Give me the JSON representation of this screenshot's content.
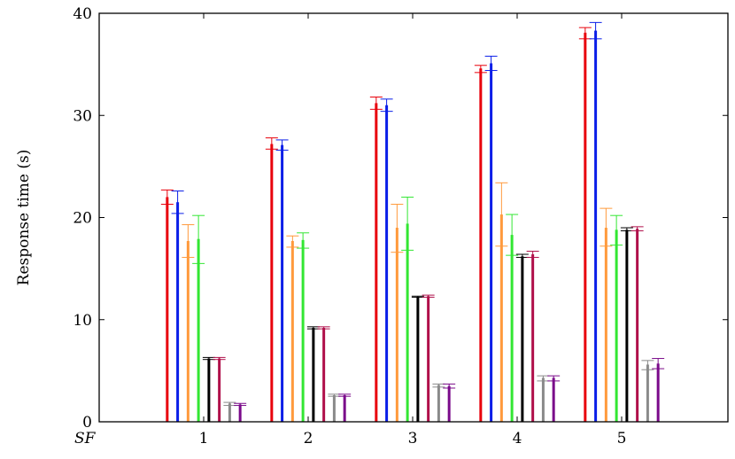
{
  "chart_data": {
    "type": "bar",
    "title": "",
    "xlabel": "SF",
    "ylabel": "Response time (s)",
    "ylim": [
      0,
      40
    ],
    "yticks": [
      0,
      10,
      20,
      30,
      40
    ],
    "categories": [
      "1",
      "2",
      "3",
      "4",
      "5"
    ],
    "grid": false,
    "series": [
      {
        "color": "#e8000b",
        "values": [
          22.0,
          27.2,
          31.2,
          34.6,
          38.1
        ],
        "error_low": [
          21.3,
          26.7,
          30.6,
          34.2,
          37.5
        ],
        "error_high": [
          22.7,
          27.8,
          31.8,
          34.9,
          38.6
        ]
      },
      {
        "color": "#0a1ee8",
        "values": [
          21.5,
          27.1,
          31.0,
          35.1,
          38.3
        ],
        "error_low": [
          20.4,
          26.6,
          30.4,
          34.4,
          37.5
        ],
        "error_high": [
          22.6,
          27.6,
          31.6,
          35.8,
          39.1
        ]
      },
      {
        "color": "#ff9a3c",
        "values": [
          17.7,
          17.7,
          19.0,
          20.3,
          19.0
        ],
        "error_low": [
          16.1,
          17.1,
          16.6,
          17.2,
          17.2
        ],
        "error_high": [
          19.3,
          18.2,
          21.3,
          23.4,
          20.9
        ]
      },
      {
        "color": "#33e633",
        "values": [
          17.9,
          17.8,
          19.4,
          18.3,
          18.8
        ],
        "error_low": [
          15.5,
          17.0,
          16.8,
          16.3,
          17.3
        ],
        "error_high": [
          20.2,
          18.5,
          22.0,
          20.3,
          20.2
        ]
      },
      {
        "color": "#000000",
        "values": [
          6.2,
          9.2,
          12.2,
          16.2,
          18.8
        ],
        "error_low": [
          6.1,
          9.1,
          12.2,
          16.1,
          18.7
        ],
        "error_high": [
          6.3,
          9.3,
          12.3,
          16.4,
          19.0
        ]
      },
      {
        "color": "#b0104a",
        "values": [
          6.2,
          9.2,
          12.3,
          16.4,
          18.9
        ],
        "error_low": [
          6.1,
          9.1,
          12.2,
          16.1,
          18.7
        ],
        "error_high": [
          6.3,
          9.3,
          12.4,
          16.7,
          19.1
        ]
      },
      {
        "color": "#8a8a8a",
        "values": [
          1.8,
          2.6,
          3.6,
          4.3,
          5.6
        ],
        "error_low": [
          1.6,
          2.5,
          3.4,
          4.0,
          5.1
        ],
        "error_high": [
          1.9,
          2.7,
          3.7,
          4.5,
          6.0
        ]
      },
      {
        "color": "#7a0a8a",
        "values": [
          1.7,
          2.6,
          3.5,
          4.3,
          5.7
        ],
        "error_low": [
          1.6,
          2.5,
          3.3,
          4.0,
          5.2
        ],
        "error_high": [
          1.8,
          2.7,
          3.7,
          4.5,
          6.2
        ]
      }
    ]
  }
}
